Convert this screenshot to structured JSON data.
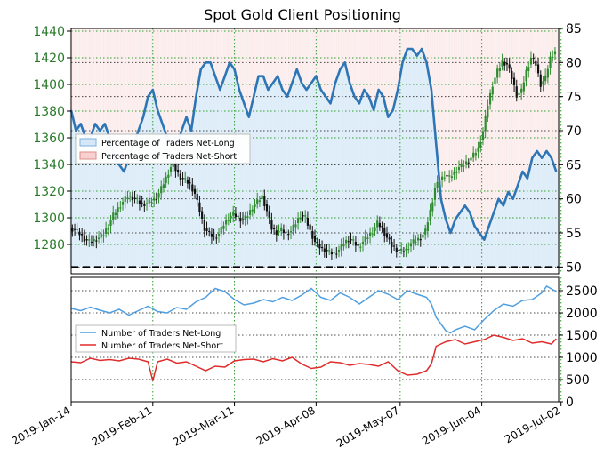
{
  "title": "Spot Gold Client Positioning",
  "colors": {
    "price_axis_text": "#2a7a2a",
    "net_long_line": "#2e75b6",
    "net_long_fill": "#d6e8f7",
    "net_short_fill": "#f7d0d0",
    "count_long_line": "#4f9fe0",
    "count_short_line": "#e02b2b",
    "candle_up": "#2e8b2e",
    "candle_down": "#111111",
    "grid_green": "#2ca02c",
    "grid_black": "#000000"
  },
  "chart_data": [
    {
      "type": "candlestick+line",
      "name": "price-and-sentiment",
      "x_dates": [
        "2019-Jan-14",
        "2019-Feb-11",
        "2019-Mar-11",
        "2019-Apr-08",
        "2019-May-07",
        "2019-Jun-04",
        "2019-Jul-02"
      ],
      "left_axis": {
        "ticks": [
          1280,
          1300,
          1320,
          1340,
          1360,
          1380,
          1400,
          1420,
          1440
        ],
        "ylim": [
          1258,
          1442
        ]
      },
      "right_axis": {
        "ticks": [
          50,
          55,
          60,
          65,
          70,
          75,
          80,
          85
        ],
        "ylim": [
          49,
          85
        ]
      },
      "legend": {
        "position": "left",
        "entries": [
          "Percentage of Traders Net-Long",
          "Percentage of Traders Net-Short"
        ]
      },
      "reference_line": 50,
      "gold_close": [
        [
          0,
          1292
        ],
        [
          2,
          1291
        ],
        [
          4,
          1288
        ],
        [
          6,
          1284
        ],
        [
          8,
          1282
        ],
        [
          10,
          1283
        ],
        [
          12,
          1285
        ],
        [
          14,
          1288
        ],
        [
          16,
          1294
        ],
        [
          18,
          1302
        ],
        [
          20,
          1307
        ],
        [
          22,
          1312
        ],
        [
          24,
          1316
        ],
        [
          26,
          1315
        ],
        [
          28,
          1313
        ],
        [
          30,
          1310
        ],
        [
          32,
          1311
        ],
        [
          34,
          1313
        ],
        [
          36,
          1315
        ],
        [
          38,
          1322
        ],
        [
          40,
          1330
        ],
        [
          42,
          1338
        ],
        [
          43,
          1340
        ],
        [
          44,
          1336
        ],
        [
          46,
          1330
        ],
        [
          48,
          1328
        ],
        [
          50,
          1325
        ],
        [
          52,
          1318
        ],
        [
          54,
          1305
        ],
        [
          56,
          1292
        ],
        [
          58,
          1288
        ],
        [
          60,
          1285
        ],
        [
          62,
          1288
        ],
        [
          64,
          1295
        ],
        [
          66,
          1300
        ],
        [
          68,
          1303
        ],
        [
          70,
          1300
        ],
        [
          72,
          1298
        ],
        [
          74,
          1302
        ],
        [
          76,
          1308
        ],
        [
          78,
          1312
        ],
        [
          80,
          1316
        ],
        [
          82,
          1305
        ],
        [
          84,
          1292
        ],
        [
          86,
          1289
        ],
        [
          88,
          1291
        ],
        [
          90,
          1288
        ],
        [
          92,
          1290
        ],
        [
          94,
          1296
        ],
        [
          96,
          1302
        ],
        [
          98,
          1300
        ],
        [
          100,
          1290
        ],
        [
          102,
          1282
        ],
        [
          104,
          1278
        ],
        [
          106,
          1276
        ],
        [
          108,
          1274
        ],
        [
          110,
          1273
        ],
        [
          112,
          1276
        ],
        [
          114,
          1281
        ],
        [
          116,
          1284
        ],
        [
          118,
          1282
        ],
        [
          120,
          1278
        ],
        [
          122,
          1282
        ],
        [
          124,
          1286
        ],
        [
          126,
          1290
        ],
        [
          128,
          1296
        ],
        [
          130,
          1292
        ],
        [
          132,
          1285
        ],
        [
          134,
          1279
        ],
        [
          136,
          1276
        ],
        [
          138,
          1275
        ],
        [
          140,
          1276
        ],
        [
          142,
          1281
        ],
        [
          144,
          1283
        ],
        [
          146,
          1285
        ],
        [
          148,
          1290
        ],
        [
          150,
          1305
        ],
        [
          152,
          1322
        ],
        [
          154,
          1328
        ],
        [
          156,
          1332
        ],
        [
          158,
          1330
        ],
        [
          160,
          1334
        ],
        [
          162,
          1338
        ],
        [
          164,
          1340
        ],
        [
          166,
          1343
        ],
        [
          168,
          1347
        ],
        [
          170,
          1352
        ],
        [
          172,
          1365
        ],
        [
          174,
          1385
        ],
        [
          176,
          1400
        ],
        [
          178,
          1410
        ],
        [
          180,
          1417
        ],
        [
          182,
          1415
        ],
        [
          184,
          1405
        ],
        [
          186,
          1392
        ],
        [
          188,
          1395
        ],
        [
          190,
          1410
        ],
        [
          192,
          1420
        ],
        [
          194,
          1415
        ],
        [
          196,
          1400
        ],
        [
          198,
          1405
        ],
        [
          200,
          1420
        ],
        [
          202,
          1425
        ]
      ],
      "net_long_pct": [
        [
          0,
          73
        ],
        [
          2,
          70
        ],
        [
          4,
          71
        ],
        [
          6,
          69
        ],
        [
          8,
          69
        ],
        [
          10,
          71
        ],
        [
          12,
          70
        ],
        [
          14,
          71
        ],
        [
          16,
          69
        ],
        [
          18,
          66
        ],
        [
          20,
          65
        ],
        [
          22,
          64
        ],
        [
          24,
          66
        ],
        [
          26,
          68
        ],
        [
          28,
          70
        ],
        [
          30,
          72
        ],
        [
          32,
          75
        ],
        [
          34,
          76
        ],
        [
          36,
          73
        ],
        [
          38,
          71
        ],
        [
          40,
          69
        ],
        [
          42,
          68
        ],
        [
          44,
          68
        ],
        [
          46,
          70
        ],
        [
          48,
          72
        ],
        [
          50,
          70
        ],
        [
          52,
          75
        ],
        [
          54,
          79
        ],
        [
          56,
          80
        ],
        [
          58,
          80
        ],
        [
          60,
          78
        ],
        [
          62,
          76
        ],
        [
          64,
          78
        ],
        [
          66,
          80
        ],
        [
          68,
          79
        ],
        [
          70,
          76
        ],
        [
          72,
          74
        ],
        [
          74,
          72
        ],
        [
          76,
          75
        ],
        [
          78,
          78
        ],
        [
          80,
          78
        ],
        [
          82,
          76
        ],
        [
          84,
          77
        ],
        [
          86,
          78
        ],
        [
          88,
          76
        ],
        [
          90,
          75
        ],
        [
          92,
          77
        ],
        [
          94,
          79
        ],
        [
          96,
          77
        ],
        [
          98,
          76
        ],
        [
          100,
          77
        ],
        [
          102,
          78
        ],
        [
          104,
          76
        ],
        [
          106,
          75
        ],
        [
          108,
          74
        ],
        [
          110,
          77
        ],
        [
          112,
          79
        ],
        [
          114,
          80
        ],
        [
          116,
          77
        ],
        [
          118,
          75
        ],
        [
          120,
          74
        ],
        [
          122,
          76
        ],
        [
          124,
          75
        ],
        [
          126,
          73
        ],
        [
          128,
          76
        ],
        [
          130,
          75
        ],
        [
          132,
          72
        ],
        [
          134,
          73
        ],
        [
          136,
          76
        ],
        [
          138,
          80
        ],
        [
          140,
          82
        ],
        [
          142,
          82
        ],
        [
          144,
          81
        ],
        [
          146,
          82
        ],
        [
          148,
          80
        ],
        [
          150,
          76
        ],
        [
          152,
          68
        ],
        [
          154,
          60
        ],
        [
          156,
          57
        ],
        [
          158,
          55
        ],
        [
          160,
          57
        ],
        [
          162,
          58
        ],
        [
          164,
          59
        ],
        [
          166,
          58
        ],
        [
          168,
          56
        ],
        [
          170,
          55
        ],
        [
          172,
          54
        ],
        [
          174,
          56
        ],
        [
          176,
          58
        ],
        [
          178,
          60
        ],
        [
          180,
          59
        ],
        [
          182,
          61
        ],
        [
          184,
          60
        ],
        [
          186,
          62
        ],
        [
          188,
          64
        ],
        [
          190,
          63
        ],
        [
          192,
          66
        ],
        [
          194,
          67
        ],
        [
          196,
          66
        ],
        [
          198,
          67
        ],
        [
          200,
          66
        ],
        [
          202,
          64
        ]
      ]
    },
    {
      "type": "line",
      "name": "trader-counts",
      "x_dates": [
        "2019-Jan-14",
        "2019-Feb-11",
        "2019-Mar-11",
        "2019-Apr-08",
        "2019-May-07",
        "2019-Jun-04",
        "2019-Jul-02"
      ],
      "y_axis": {
        "ticks": [
          0,
          500,
          1000,
          1500,
          2000,
          2500
        ],
        "ylim": [
          0,
          2800
        ]
      },
      "legend": {
        "position": "left",
        "entries": [
          "Number of Traders Net-Long",
          "Number of Traders Net-Short"
        ]
      },
      "series": [
        {
          "name": "Number of Traders Net-Long",
          "points": [
            [
              0,
              2100
            ],
            [
              4,
              2050
            ],
            [
              8,
              2130
            ],
            [
              12,
              2060
            ],
            [
              16,
              2000
            ],
            [
              20,
              2080
            ],
            [
              24,
              1950
            ],
            [
              28,
              2050
            ],
            [
              32,
              2150
            ],
            [
              36,
              2030
            ],
            [
              40,
              2000
            ],
            [
              44,
              2120
            ],
            [
              48,
              2080
            ],
            [
              52,
              2250
            ],
            [
              56,
              2350
            ],
            [
              60,
              2550
            ],
            [
              64,
              2480
            ],
            [
              68,
              2300
            ],
            [
              72,
              2180
            ],
            [
              76,
              2220
            ],
            [
              80,
              2300
            ],
            [
              84,
              2250
            ],
            [
              88,
              2350
            ],
            [
              92,
              2280
            ],
            [
              96,
              2400
            ],
            [
              100,
              2550
            ],
            [
              104,
              2350
            ],
            [
              108,
              2280
            ],
            [
              112,
              2450
            ],
            [
              116,
              2350
            ],
            [
              120,
              2200
            ],
            [
              124,
              2350
            ],
            [
              128,
              2500
            ],
            [
              132,
              2420
            ],
            [
              136,
              2300
            ],
            [
              140,
              2500
            ],
            [
              144,
              2420
            ],
            [
              148,
              2350
            ],
            [
              150,
              2200
            ],
            [
              152,
              1900
            ],
            [
              154,
              1750
            ],
            [
              156,
              1600
            ],
            [
              158,
              1550
            ],
            [
              160,
              1620
            ],
            [
              164,
              1700
            ],
            [
              168,
              1620
            ],
            [
              172,
              1850
            ],
            [
              176,
              2050
            ],
            [
              180,
              2200
            ],
            [
              184,
              2150
            ],
            [
              188,
              2280
            ],
            [
              192,
              2300
            ],
            [
              196,
              2450
            ],
            [
              198,
              2600
            ],
            [
              202,
              2480
            ]
          ]
        },
        {
          "name": "Number of Traders Net-Short",
          "points": [
            [
              0,
              900
            ],
            [
              4,
              880
            ],
            [
              8,
              980
            ],
            [
              12,
              930
            ],
            [
              16,
              950
            ],
            [
              20,
              920
            ],
            [
              24,
              980
            ],
            [
              28,
              960
            ],
            [
              32,
              900
            ],
            [
              34,
              470
            ],
            [
              36,
              900
            ],
            [
              40,
              960
            ],
            [
              44,
              870
            ],
            [
              48,
              900
            ],
            [
              52,
              800
            ],
            [
              56,
              700
            ],
            [
              60,
              800
            ],
            [
              64,
              780
            ],
            [
              68,
              920
            ],
            [
              72,
              950
            ],
            [
              76,
              960
            ],
            [
              80,
              900
            ],
            [
              84,
              970
            ],
            [
              88,
              920
            ],
            [
              92,
              1000
            ],
            [
              96,
              850
            ],
            [
              100,
              750
            ],
            [
              104,
              780
            ],
            [
              108,
              900
            ],
            [
              112,
              880
            ],
            [
              116,
              820
            ],
            [
              120,
              860
            ],
            [
              124,
              840
            ],
            [
              128,
              800
            ],
            [
              132,
              900
            ],
            [
              136,
              700
            ],
            [
              140,
              600
            ],
            [
              144,
              620
            ],
            [
              148,
              700
            ],
            [
              150,
              850
            ],
            [
              152,
              1250
            ],
            [
              156,
              1350
            ],
            [
              160,
              1400
            ],
            [
              164,
              1300
            ],
            [
              168,
              1350
            ],
            [
              172,
              1400
            ],
            [
              176,
              1500
            ],
            [
              180,
              1450
            ],
            [
              184,
              1380
            ],
            [
              188,
              1420
            ],
            [
              192,
              1320
            ],
            [
              196,
              1350
            ],
            [
              200,
              1300
            ],
            [
              202,
              1420
            ]
          ]
        }
      ]
    }
  ]
}
